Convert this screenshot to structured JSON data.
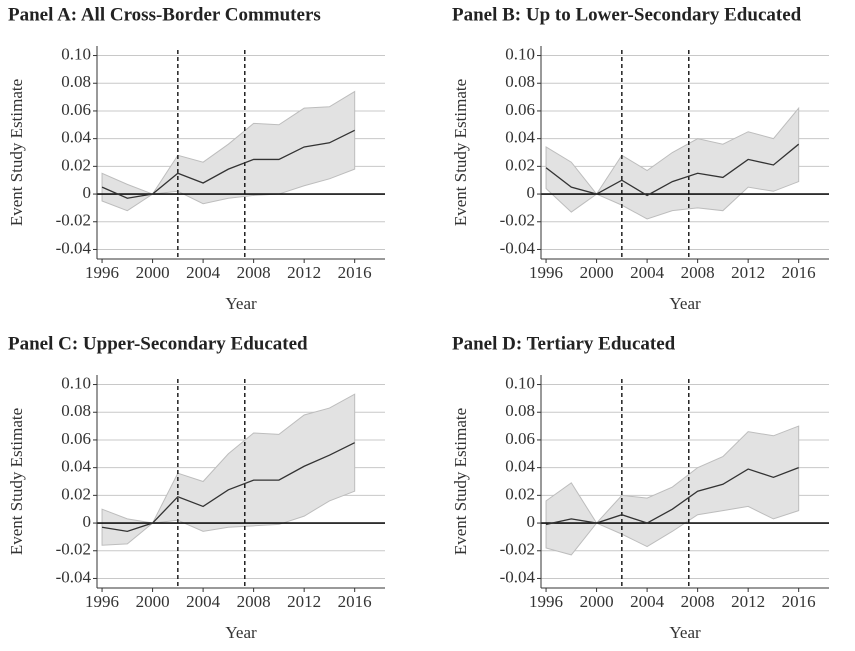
{
  "chart_data": [
    {
      "type": "line",
      "title": "Panel A: All Cross-Border Commuters",
      "x_label": "Year",
      "y_label": "Event Study Estimate",
      "x": [
        1996,
        1998,
        2000,
        2002,
        2004,
        2006,
        2008,
        2010,
        2012,
        2014,
        2016
      ],
      "values": [
        0.005,
        -0.003,
        0,
        0.015,
        0.008,
        0.018,
        0.025,
        0.025,
        0.034,
        0.037,
        0.046
      ],
      "ci_lower": [
        -0.005,
        -0.012,
        0,
        0.002,
        -0.007,
        -0.003,
        -0.001,
        0,
        0.006,
        0.011,
        0.018
      ],
      "ci_upper": [
        0.015,
        0.007,
        0,
        0.028,
        0.023,
        0.036,
        0.051,
        0.05,
        0.062,
        0.063,
        0.074
      ],
      "color": "#333333",
      "band_color": "#e2e2e2",
      "vlines": [
        2002,
        2007.3
      ],
      "xlim": [
        1995.6,
        2018.4
      ],
      "xticks": [
        1996,
        2000,
        2004,
        2008,
        2012,
        2016
      ],
      "ylim": [
        -0.044,
        0.104
      ],
      "yticks": [
        {
          "value": 0.1,
          "label": "0.10"
        },
        0.08,
        0.06,
        0.04,
        0.02,
        0,
        -0.02,
        -0.04
      ],
      "grid": true
    },
    {
      "type": "line",
      "title": "Panel B: Up to Lower-Secondary Educated",
      "x_label": "Year",
      "y_label": "Event Study Estimate",
      "x": [
        1996,
        1998,
        2000,
        2002,
        2004,
        2006,
        2008,
        2010,
        2012,
        2014,
        2016
      ],
      "values": [
        0.019,
        0.005,
        0,
        0.01,
        -0.001,
        0.009,
        0.015,
        0.012,
        0.025,
        0.021,
        0.036
      ],
      "ci_lower": [
        0.004,
        -0.013,
        0,
        -0.008,
        -0.018,
        -0.012,
        -0.01,
        -0.012,
        0.005,
        0.002,
        0.009
      ],
      "ci_upper": [
        0.034,
        0.023,
        0,
        0.028,
        0.017,
        0.03,
        0.04,
        0.036,
        0.045,
        0.04,
        0.062
      ],
      "color": "#333333",
      "band_color": "#e2e2e2",
      "vlines": [
        2002,
        2007.3
      ],
      "xlim": [
        1995.6,
        2018.4
      ],
      "xticks": [
        1996,
        2000,
        2004,
        2008,
        2012,
        2016
      ],
      "ylim": [
        -0.044,
        0.104
      ],
      "yticks": [
        {
          "value": 0.1,
          "label": "0.10"
        },
        0.08,
        0.06,
        0.04,
        0.02,
        0,
        -0.02,
        -0.04
      ],
      "grid": true
    },
    {
      "type": "line",
      "title": "Panel C: Upper-Secondary Educated",
      "x_label": "Year",
      "y_label": "Event Study Estimate",
      "x": [
        1996,
        1998,
        2000,
        2002,
        2004,
        2006,
        2008,
        2010,
        2012,
        2014,
        2016
      ],
      "values": [
        -0.003,
        -0.006,
        0,
        0.019,
        0.012,
        0.024,
        0.031,
        0.031,
        0.041,
        0.049,
        0.058
      ],
      "ci_lower": [
        -0.016,
        -0.015,
        0,
        0.002,
        -0.006,
        -0.003,
        -0.002,
        -0.001,
        0.005,
        0.016,
        0.023
      ],
      "ci_upper": [
        0.01,
        0.003,
        0,
        0.036,
        0.03,
        0.05,
        0.065,
        0.064,
        0.078,
        0.083,
        0.093
      ],
      "color": "#333333",
      "band_color": "#e2e2e2",
      "vlines": [
        2002,
        2007.3
      ],
      "xlim": [
        1995.6,
        2018.4
      ],
      "xticks": [
        1996,
        2000,
        2004,
        2008,
        2012,
        2016
      ],
      "ylim": [
        -0.044,
        0.104
      ],
      "yticks": [
        {
          "value": 0.1,
          "label": "0.10"
        },
        0.08,
        0.06,
        0.04,
        0.02,
        0,
        -0.02,
        -0.04
      ],
      "grid": true
    },
    {
      "type": "line",
      "title": "Panel D: Tertiary Educated",
      "x_label": "Year",
      "y_label": "Event Study Estimate",
      "x": [
        1996,
        1998,
        2000,
        2002,
        2004,
        2006,
        2008,
        2010,
        2012,
        2014,
        2016
      ],
      "values": [
        -0.001,
        0.003,
        0,
        0.006,
        0,
        0.01,
        0.023,
        0.028,
        0.039,
        0.033,
        0.04
      ],
      "ci_lower": [
        -0.018,
        -0.023,
        0,
        -0.008,
        -0.017,
        -0.006,
        0.006,
        0.009,
        0.012,
        0.003,
        0.009
      ],
      "ci_upper": [
        0.016,
        0.029,
        0,
        0.02,
        0.018,
        0.026,
        0.04,
        0.048,
        0.066,
        0.063,
        0.07
      ],
      "color": "#333333",
      "band_color": "#e2e2e2",
      "vlines": [
        2002,
        2007.3
      ],
      "xlim": [
        1995.6,
        2018.4
      ],
      "xticks": [
        1996,
        2000,
        2004,
        2008,
        2012,
        2016
      ],
      "ylim": [
        -0.044,
        0.104
      ],
      "yticks": [
        {
          "value": 0.1,
          "label": "0.10"
        },
        0.08,
        0.06,
        0.04,
        0.02,
        0,
        -0.02,
        -0.04
      ],
      "grid": true
    }
  ]
}
